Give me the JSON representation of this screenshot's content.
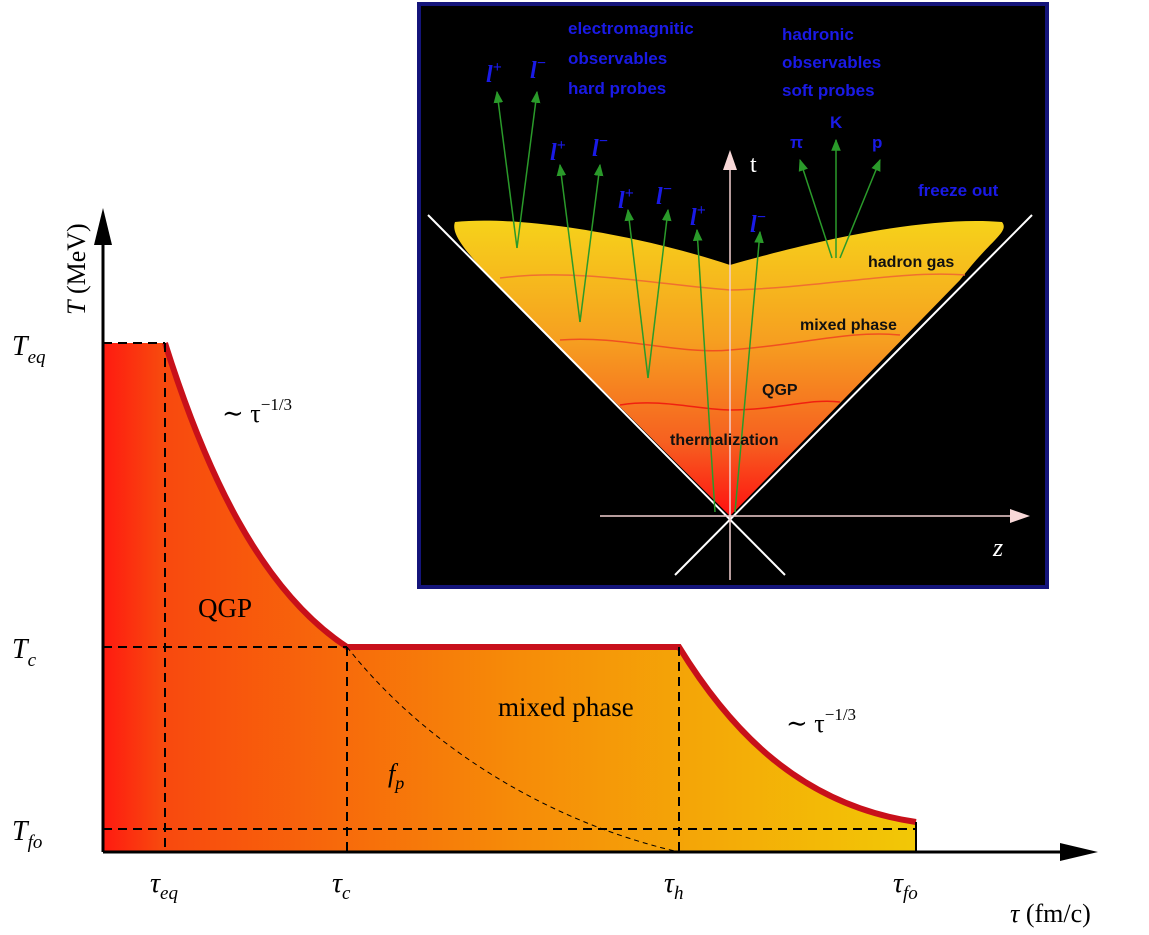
{
  "plot": {
    "y_axis_label": {
      "symbol": "T",
      "unit": "(MeV)"
    },
    "x_axis_label": {
      "symbol": "τ",
      "unit": "(fm/c)"
    },
    "y_ticks": [
      {
        "base": "T",
        "sub": "eq"
      },
      {
        "base": "T",
        "sub": "c"
      },
      {
        "base": "T",
        "sub": "fo"
      }
    ],
    "x_ticks": [
      {
        "base": "τ",
        "sub": "eq"
      },
      {
        "base": "τ",
        "sub": "c"
      },
      {
        "base": "τ",
        "sub": "h"
      },
      {
        "base": "τ",
        "sub": "fo"
      }
    ],
    "regions": {
      "qgp": "QGP",
      "mixed": "mixed phase",
      "fp": {
        "base": "f",
        "sub": "p"
      }
    },
    "annotations": [
      {
        "text": "∼ τ",
        "sup": "−1/3"
      },
      {
        "text": "∼ τ",
        "sup": "−1/3"
      }
    ]
  },
  "inset": {
    "em_label": [
      "electromagnitic",
      "observables",
      "hard probes"
    ],
    "hadronic_label": [
      "hadronic",
      "observables",
      "soft probes"
    ],
    "leptons": [
      {
        "base": "l",
        "sup": "+"
      },
      {
        "base": "l",
        "sup": "−"
      }
    ],
    "hadrons": [
      "π",
      "K",
      "p"
    ],
    "axis_t": "t",
    "axis_z": "z",
    "stages": {
      "freeze_out": "freeze out",
      "hadron_gas": "hadron gas",
      "mixed_phase": "mixed phase",
      "qgp": "QGP",
      "thermalization": "thermalization"
    }
  }
}
